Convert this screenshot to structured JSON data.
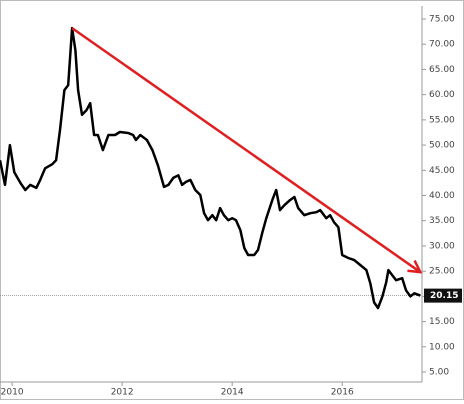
{
  "chart_data": {
    "type": "line",
    "x": [
      2009.78,
      2009.87,
      2009.96,
      2010.04,
      2010.15,
      2010.24,
      2010.33,
      2010.44,
      2010.51,
      2010.6,
      2010.73,
      2010.8,
      2010.87,
      2010.95,
      2011.02,
      2011.09,
      2011.15,
      2011.2,
      2011.27,
      2011.35,
      2011.42,
      2011.49,
      2011.56,
      2011.65,
      2011.75,
      2011.87,
      2011.96,
      2012.11,
      2012.2,
      2012.25,
      2012.33,
      2012.45,
      2012.55,
      2012.65,
      2012.76,
      2012.84,
      2012.93,
      2013.02,
      2013.09,
      2013.16,
      2013.24,
      2013.33,
      2013.42,
      2013.49,
      2013.56,
      2013.64,
      2013.71,
      2013.78,
      2013.85,
      2013.93,
      2014.0,
      2014.07,
      2014.15,
      2014.22,
      2014.29,
      2014.4,
      2014.47,
      2014.55,
      2014.62,
      2014.73,
      2014.8,
      2014.87,
      2014.95,
      2015.05,
      2015.13,
      2015.2,
      2015.31,
      2015.42,
      2015.53,
      2015.6,
      2015.71,
      2015.78,
      2015.85,
      2015.93,
      2016.0,
      2016.11,
      2016.22,
      2016.33,
      2016.44,
      2016.51,
      2016.58,
      2016.65,
      2016.73,
      2016.8,
      2016.84,
      2016.91,
      2016.98,
      2017.09,
      2017.16,
      2017.24,
      2017.31,
      2017.42
    ],
    "series": [
      {
        "color": "#000000",
        "values": [
          47.0,
          42.1,
          50.0,
          44.6,
          42.5,
          41.1,
          42.1,
          41.5,
          43.1,
          45.4,
          46.2,
          47.0,
          53.0,
          60.9,
          61.9,
          73.2,
          68.8,
          60.9,
          56.0,
          56.9,
          58.3,
          52.0,
          52.0,
          49.0,
          52.0,
          52.0,
          52.6,
          52.4,
          52.0,
          51.0,
          52.0,
          51.0,
          49.0,
          46.0,
          41.7,
          42.1,
          43.5,
          44.0,
          42.1,
          42.7,
          43.1,
          41.1,
          40.1,
          36.5,
          35.1,
          36.1,
          35.1,
          37.5,
          36.1,
          35.1,
          35.5,
          35.1,
          33.1,
          29.6,
          28.2,
          28.2,
          29.2,
          32.7,
          35.5,
          39.1,
          41.1,
          37.1,
          38.1,
          39.1,
          39.7,
          37.5,
          36.1,
          36.5,
          36.7,
          37.1,
          35.5,
          36.1,
          34.7,
          33.7,
          28.2,
          27.6,
          27.2,
          26.2,
          25.2,
          22.6,
          18.8,
          17.7,
          20.0,
          22.8,
          25.2,
          24.2,
          23.2,
          23.6,
          21.2,
          20.0,
          20.6,
          20.15
        ]
      }
    ],
    "last_price": 20.15,
    "trendline": {
      "color": "#e02020",
      "x": [
        2011.09,
        2017.42
      ],
      "y": [
        73.2,
        24.8
      ]
    },
    "xlim": [
      2009.78,
      2017.45
    ],
    "xticks": [
      2010,
      2012,
      2014,
      2016
    ],
    "ylim": [
      3.02,
      77.58
    ],
    "yticks": [
      {
        "value": 5,
        "label": "5.00"
      },
      {
        "value": 10,
        "label": "10.00"
      },
      {
        "value": 15,
        "label": "15.00"
      },
      {
        "value": 20,
        "label": "20.00"
      },
      {
        "value": 25,
        "label": "25.00"
      },
      {
        "value": 30,
        "label": "30.00"
      },
      {
        "value": 35,
        "label": "35.00"
      },
      {
        "value": 40,
        "label": "40.00"
      },
      {
        "value": 45,
        "label": "45.00"
      },
      {
        "value": 50,
        "label": "50.00"
      },
      {
        "value": 55,
        "label": "55.00"
      },
      {
        "value": 60,
        "label": "60.00"
      },
      {
        "value": 65,
        "label": "65.00"
      },
      {
        "value": 70,
        "label": "70.00"
      },
      {
        "value": 75,
        "label": "75.00"
      }
    ],
    "grid": false
  }
}
